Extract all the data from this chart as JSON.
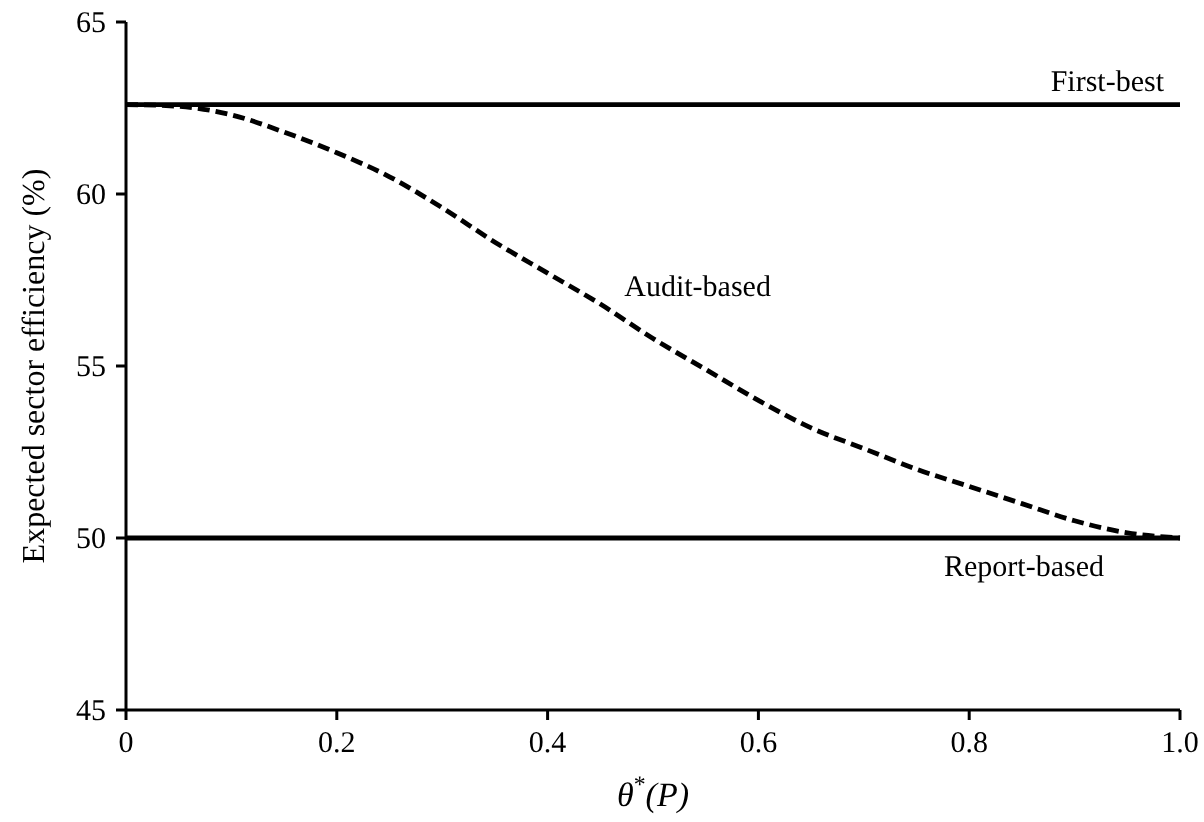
{
  "chart_data": {
    "type": "line",
    "xlabel": "θ$^{*}$(P)",
    "ylabel": "Expected sector efficiency (%)",
    "x": [
      0,
      0.05,
      0.1,
      0.15,
      0.2,
      0.25,
      0.3,
      0.35,
      0.4,
      0.45,
      0.5,
      0.55,
      0.6,
      0.65,
      0.7,
      0.75,
      0.8,
      0.85,
      0.9,
      0.95,
      1.0
    ],
    "series": [
      {
        "name": "First-best",
        "color": "#000000",
        "line_style": "solid",
        "values": [
          62.6,
          62.6,
          62.6,
          62.6,
          62.6,
          62.6,
          62.6,
          62.6,
          62.6,
          62.6,
          62.6,
          62.6,
          62.6,
          62.6,
          62.6,
          62.6,
          62.6,
          62.6,
          62.6,
          62.6,
          62.6
        ]
      },
      {
        "name": "Audit-based",
        "color": "#000000",
        "line_style": "dashed",
        "values": [
          62.6,
          62.55,
          62.3,
          61.8,
          61.2,
          60.5,
          59.6,
          58.6,
          57.7,
          56.8,
          55.8,
          54.9,
          54.0,
          53.2,
          52.6,
          52.0,
          51.5,
          51.0,
          50.5,
          50.15,
          50.0
        ]
      },
      {
        "name": "Report-based",
        "color": "#000000",
        "line_style": "solid",
        "values": [
          50,
          50,
          50,
          50,
          50,
          50,
          50,
          50,
          50,
          50,
          50,
          50,
          50,
          50,
          50,
          50,
          50,
          50,
          50,
          50,
          50
        ]
      }
    ],
    "xlim": [
      0,
      1.0
    ],
    "ylim": [
      45,
      65
    ],
    "xticks": [
      0,
      0.2,
      0.4,
      0.6,
      0.8,
      {
        "value": 1.0,
        "label": "1.0"
      }
    ],
    "yticks": [
      45,
      50,
      55,
      60,
      65
    ],
    "grid": false,
    "marker": "none"
  }
}
